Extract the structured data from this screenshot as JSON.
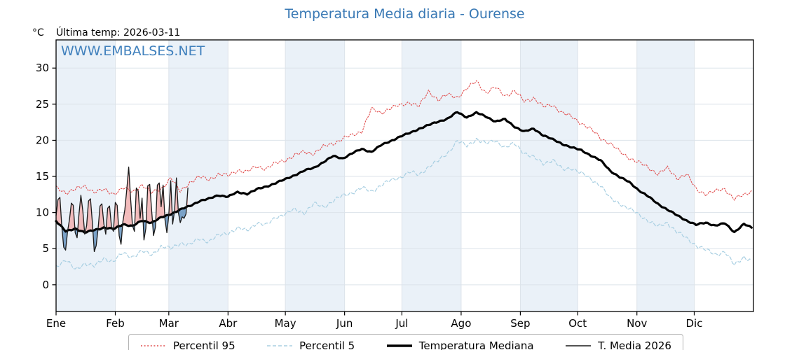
{
  "header": {
    "title": "Temperatura Media diaria - Ourense",
    "unit": "°C",
    "last_temp": "Última temp: 2026-03-11",
    "watermark": "WWW.EMBALSES.NET"
  },
  "colors": {
    "title": "#3878b4",
    "watermark": "#4181bd",
    "band": "#eaf1f8",
    "grid": "#dce3ea",
    "axis": "#000000",
    "fill_above": "#f2b5b5",
    "fill_below": "#6e99c2"
  },
  "legend": {
    "items": [
      {
        "label": "Percentil 95",
        "color": "#e14b4b",
        "width": 1.4,
        "dash": "2 2.6"
      },
      {
        "label": "Percentil 5",
        "color": "#a8cfe2",
        "width": 1.4,
        "dash": "5 3"
      },
      {
        "label": "Temperatura Mediana",
        "color": "#000000",
        "width": 3.6,
        "dash": ""
      },
      {
        "label": "T. Media 2026",
        "color": "#1a1a1a",
        "width": 1.4,
        "dash": ""
      }
    ]
  },
  "chart_data": {
    "type": "line",
    "title": "Temperatura Media diaria - Ourense",
    "ylabel": "°C",
    "ylim": [
      -3.7,
      33.9
    ],
    "yticks": [
      0,
      5,
      10,
      15,
      20,
      25,
      30
    ],
    "grid": true,
    "x_axis": {
      "month_labels": [
        "Ene",
        "Feb",
        "Mar",
        "Abr",
        "May",
        "Jun",
        "Jul",
        "Ago",
        "Sep",
        "Oct",
        "Nov",
        "Dic"
      ],
      "month_start_days": [
        0,
        31,
        59,
        90,
        120,
        151,
        181,
        212,
        243,
        273,
        304,
        334
      ],
      "days_in_year": 365,
      "shaded_months": [
        0,
        2,
        4,
        6,
        8,
        10
      ]
    },
    "annotation": "Última temp: 2026-03-11",
    "series": [
      {
        "id": "p95",
        "name": "Percentil 95",
        "color": "#e14b4b",
        "width": 1.1,
        "dash": "1.6 2.2",
        "jitter": 0.35,
        "days": [
          0,
          5,
          10,
          15,
          20,
          25,
          30,
          35,
          40,
          45,
          50,
          55,
          60,
          65,
          70,
          75,
          80,
          85,
          90,
          95,
          100,
          105,
          110,
          115,
          120,
          125,
          130,
          135,
          140,
          145,
          150,
          155,
          160,
          165,
          170,
          175,
          180,
          185,
          190,
          195,
          200,
          205,
          210,
          215,
          220,
          225,
          230,
          235,
          240,
          245,
          250,
          255,
          260,
          265,
          270,
          275,
          280,
          285,
          290,
          295,
          300,
          305,
          310,
          315,
          320,
          325,
          330,
          335,
          340,
          345,
          350,
          355,
          360,
          364
        ],
        "values": [
          13.4,
          12.8,
          13.2,
          13.6,
          12.9,
          13.1,
          12.6,
          13.4,
          12.8,
          13.9,
          12.7,
          13.3,
          14.8,
          12.9,
          14.2,
          14.9,
          14.6,
          15.3,
          15.1,
          15.9,
          15.6,
          16.4,
          16.1,
          16.8,
          17.3,
          17.9,
          18.4,
          18.2,
          19.1,
          19.6,
          20.2,
          20.7,
          21.3,
          24.3,
          23.8,
          24.5,
          24.8,
          25.3,
          24.7,
          26.8,
          25.6,
          26.3,
          26.0,
          27.1,
          28.2,
          26.6,
          27.3,
          26.2,
          26.8,
          25.4,
          25.9,
          24.6,
          24.9,
          23.8,
          23.2,
          22.4,
          21.5,
          20.3,
          19.6,
          18.4,
          17.6,
          16.9,
          16.2,
          15.4,
          16.1,
          14.8,
          15.3,
          13.2,
          12.6,
          12.9,
          13.3,
          11.9,
          12.4,
          13.0
        ]
      },
      {
        "id": "p5",
        "name": "Percentil 5",
        "color": "#a8cfe2",
        "width": 1.2,
        "dash": "4.5 2.8",
        "jitter": 0.35,
        "days": [
          0,
          5,
          10,
          15,
          20,
          25,
          30,
          35,
          40,
          45,
          50,
          55,
          60,
          65,
          70,
          75,
          80,
          85,
          90,
          95,
          100,
          105,
          110,
          115,
          120,
          125,
          130,
          135,
          140,
          145,
          150,
          155,
          160,
          165,
          170,
          175,
          180,
          185,
          190,
          195,
          200,
          205,
          210,
          215,
          220,
          225,
          230,
          235,
          240,
          245,
          250,
          255,
          260,
          265,
          270,
          275,
          280,
          285,
          290,
          295,
          300,
          305,
          310,
          315,
          320,
          325,
          330,
          335,
          340,
          345,
          350,
          355,
          360,
          364
        ],
        "values": [
          2.6,
          3.4,
          2.1,
          3.0,
          2.5,
          3.7,
          3.2,
          4.4,
          3.9,
          4.6,
          4.2,
          5.3,
          5.0,
          5.8,
          5.5,
          6.4,
          6.0,
          6.8,
          7.2,
          7.8,
          7.5,
          8.6,
          8.2,
          9.4,
          9.8,
          10.4,
          10.0,
          11.2,
          10.8,
          11.6,
          12.3,
          12.8,
          13.4,
          12.9,
          13.8,
          14.4,
          14.9,
          15.6,
          15.2,
          16.4,
          17.1,
          18.3,
          19.9,
          19.2,
          20.2,
          19.5,
          20.0,
          19.0,
          19.5,
          18.3,
          17.6,
          16.8,
          17.3,
          15.9,
          16.2,
          15.4,
          14.6,
          13.8,
          11.9,
          11.3,
          10.5,
          9.7,
          8.9,
          8.0,
          8.6,
          7.3,
          6.4,
          5.5,
          4.8,
          4.2,
          4.6,
          2.7,
          3.9,
          3.3
        ]
      },
      {
        "id": "median",
        "name": "Temperatura Mediana",
        "color": "#000000",
        "width": 3.2,
        "dash": "",
        "jitter": 0.12,
        "days": [
          0,
          5,
          10,
          15,
          20,
          25,
          30,
          35,
          40,
          45,
          50,
          55,
          60,
          65,
          70,
          75,
          80,
          85,
          90,
          95,
          100,
          105,
          110,
          115,
          120,
          125,
          130,
          135,
          140,
          145,
          150,
          155,
          160,
          165,
          170,
          175,
          180,
          185,
          190,
          195,
          200,
          205,
          210,
          215,
          220,
          225,
          230,
          235,
          240,
          245,
          250,
          255,
          260,
          265,
          270,
          275,
          280,
          285,
          290,
          295,
          300,
          305,
          310,
          315,
          320,
          325,
          330,
          335,
          340,
          345,
          350,
          355,
          360,
          364
        ],
        "values": [
          8.8,
          7.4,
          7.8,
          7.2,
          7.6,
          7.9,
          7.7,
          8.4,
          8.1,
          8.9,
          8.6,
          9.3,
          9.8,
          10.4,
          10.9,
          11.6,
          11.9,
          12.4,
          12.2,
          12.8,
          12.6,
          13.2,
          13.6,
          14.1,
          14.6,
          15.2,
          15.8,
          16.2,
          17.0,
          17.8,
          17.5,
          18.2,
          18.8,
          18.4,
          19.3,
          19.9,
          20.5,
          21.0,
          21.6,
          22.1,
          22.6,
          23.0,
          23.9,
          23.2,
          23.8,
          23.3,
          22.6,
          22.9,
          21.9,
          21.2,
          21.6,
          20.7,
          20.1,
          19.5,
          19.0,
          18.6,
          17.9,
          17.2,
          15.8,
          14.9,
          14.2,
          13.1,
          12.2,
          11.2,
          10.4,
          9.6,
          8.9,
          8.3,
          8.6,
          8.2,
          8.5,
          7.3,
          8.4,
          7.9
        ]
      },
      {
        "id": "t2026",
        "name": "T. Media 2026",
        "color": "#1a1a1a",
        "width": 1.3,
        "dash": "",
        "jitter": 0,
        "start_day": 0,
        "values": [
          9.6,
          11.8,
          12.1,
          8.0,
          5.2,
          4.8,
          7.4,
          9.0,
          11.3,
          11.0,
          7.2,
          6.5,
          9.8,
          12.4,
          10.2,
          7.0,
          8.2,
          11.6,
          11.9,
          8.6,
          4.6,
          5.4,
          7.8,
          10.9,
          11.2,
          8.4,
          7.0,
          10.6,
          10.9,
          8.0,
          7.4,
          11.4,
          11.0,
          6.8,
          5.6,
          8.8,
          10.4,
          13.2,
          16.3,
          12.0,
          8.2,
          7.4,
          13.4,
          13.0,
          9.2,
          12.0,
          6.2,
          7.8,
          13.7,
          13.9,
          10.4,
          6.8,
          8.0,
          13.8,
          14.1,
          10.8,
          13.8,
          9.0,
          7.2,
          9.6,
          14.4,
          8.4,
          10.2,
          14.8,
          10.0,
          8.6,
          9.4,
          9.2,
          9.8,
          13.4
        ]
      }
    ],
    "fills": [
      {
        "meaning": "T. Media 2026 above Temperatura Mediana",
        "color": "#f2b5b5"
      },
      {
        "meaning": "T. Media 2026 below Temperatura Mediana",
        "color": "#6e99c2"
      }
    ],
    "legend_position": "bottom"
  }
}
